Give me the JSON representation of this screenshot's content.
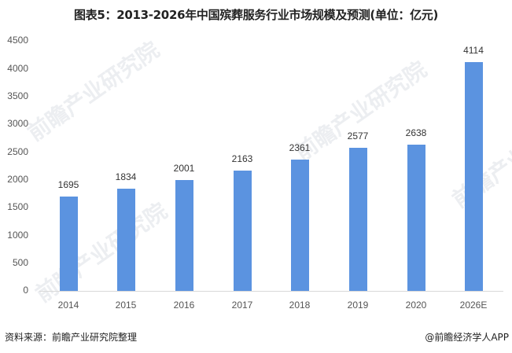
{
  "title": "图表5：2013-2026年中国殡葬服务行业市场规模及预测(单位：亿元)",
  "footer": {
    "source": "资料来源：前瞻产业研究院整理",
    "credit": "@前瞻经济学人APP"
  },
  "watermark": "前瞻产业研究院",
  "colors": {
    "bar": "#5b93e0",
    "axis": "#d9d9d9"
  },
  "chart_data": {
    "type": "bar",
    "title": "图表5：2013-2026年中国殡葬服务行业市场规模及预测(单位：亿元)",
    "xlabel": "",
    "ylabel": "",
    "categories": [
      "2014",
      "2015",
      "2016",
      "2017",
      "2018",
      "2019",
      "2020",
      "2026E"
    ],
    "values": [
      1695,
      1834,
      2001,
      2163,
      2361,
      2577,
      2638,
      4114
    ],
    "value_labels": [
      "1695",
      "1834",
      "2001",
      "2163",
      "2361",
      "2577",
      "2638",
      "4114"
    ],
    "ylim": [
      0,
      4500
    ],
    "yticks": [
      "4500",
      "4000",
      "3500",
      "3000",
      "2500",
      "2000",
      "1500",
      "1000",
      "500",
      "0"
    ],
    "grid": false,
    "legend": "none",
    "unit": "亿元"
  }
}
